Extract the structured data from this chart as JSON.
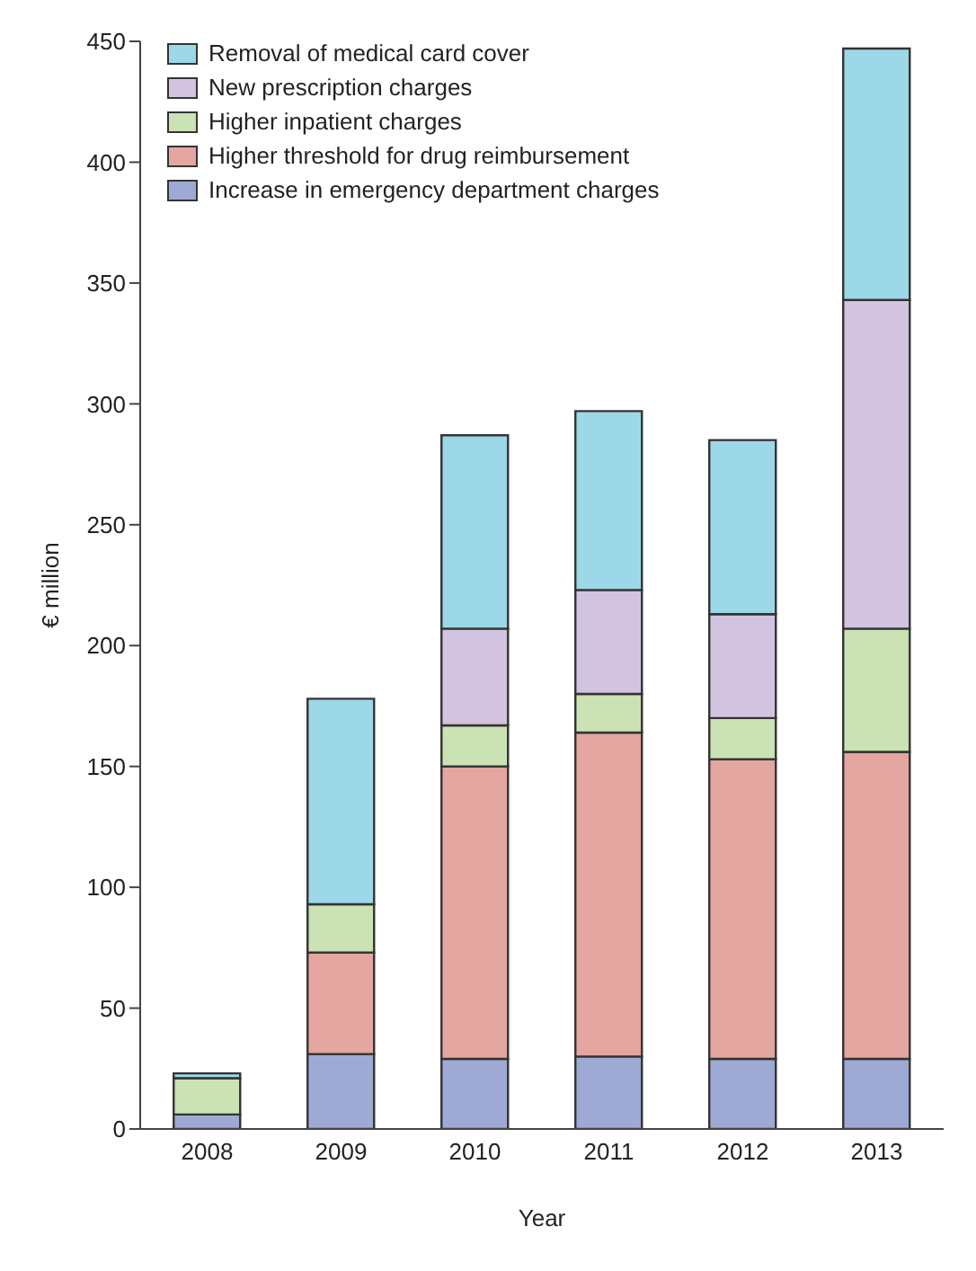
{
  "chart_data": {
    "type": "bar",
    "stacked": true,
    "xlabel": "Year",
    "ylabel": "€ million",
    "categories": [
      "2008",
      "2009",
      "2010",
      "2011",
      "2012",
      "2013"
    ],
    "series": [
      {
        "name": "Increase in emergency department charges",
        "color": "#9eaad4",
        "values": [
          6,
          31,
          29,
          30,
          29,
          29
        ]
      },
      {
        "name": "Higher threshold for drug reimbursement",
        "color": "#e4a6a0",
        "values": [
          0,
          42,
          121,
          134,
          124,
          127
        ]
      },
      {
        "name": "Higher inpatient charges",
        "color": "#cbe2b4",
        "values": [
          15,
          20,
          17,
          16,
          17,
          51
        ]
      },
      {
        "name": "New prescription charges",
        "color": "#d2c4e0",
        "values": [
          0,
          0,
          40,
          43,
          43,
          136
        ]
      },
      {
        "name": "Removal of medical card cover",
        "color": "#9dd8e8",
        "values": [
          2,
          85,
          80,
          74,
          72,
          104
        ]
      }
    ],
    "ylim": [
      0,
      450
    ],
    "yticks": [
      0,
      50,
      100,
      150,
      200,
      250,
      300,
      350,
      400,
      450
    ],
    "grid": false,
    "legend": "top left"
  }
}
